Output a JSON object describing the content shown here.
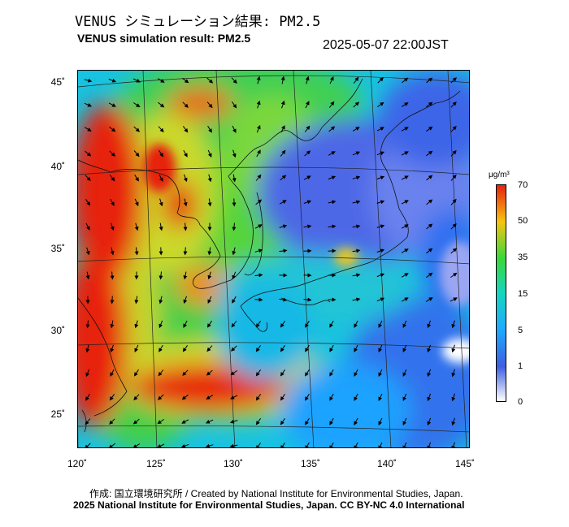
{
  "header": {
    "title_jp": "VENUS シミュレーション結果: PM2.5",
    "title_en": "VENUS simulation result: PM2.5",
    "timestamp": "2025-05-07 22:00JST"
  },
  "map": {
    "y_axis_labels": [
      "45˚",
      "40˚",
      "35˚",
      "30˚",
      "25˚"
    ],
    "x_axis_labels": [
      "120˚",
      "125˚",
      "130˚",
      "135˚",
      "140˚",
      "145˚"
    ]
  },
  "colorbar": {
    "unit_label": "μg/m³",
    "ticks": [
      "70",
      "50",
      "35",
      "15",
      "5",
      "1",
      "0"
    ],
    "colors": {
      "c0": "#ffffff",
      "c1": "#3f5fe0",
      "c5": "#1fa9ff",
      "c15": "#16d6c0",
      "c35": "#39d83a",
      "c50": "#f6c411",
      "c70": "#e7200f"
    }
  },
  "footer": {
    "credit_line": "作成: 国立環境研究所 / Created by National Institute for Environmental Studies, Japan.",
    "license_line": "2025 National Institute for Environmental Studies, Japan. CC BY-NC 4.0 International"
  }
}
